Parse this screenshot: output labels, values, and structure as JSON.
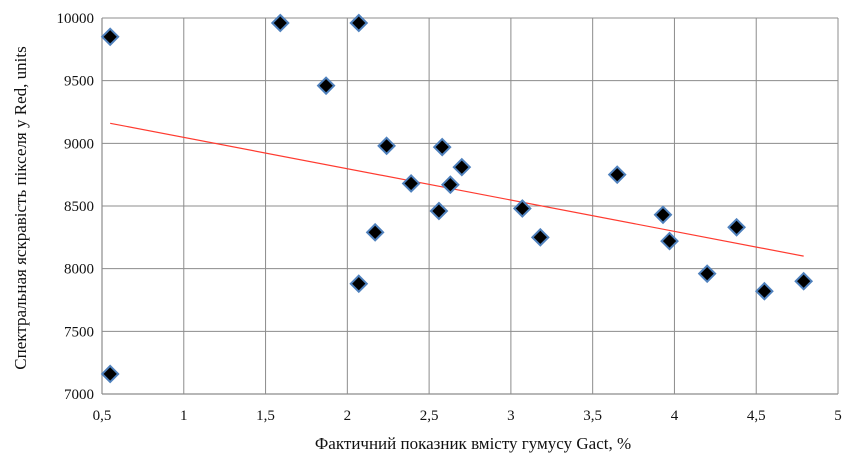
{
  "chart_data": {
    "type": "scatter",
    "title": "",
    "xlabel": "Фактичний показник вмісту гумусу Gact, %",
    "ylabel": "Спектральная яскравість пікселя у Red, units",
    "xlim": [
      0.5,
      5
    ],
    "ylim": [
      7000,
      10000
    ],
    "x_tick_labels": [
      "0,5",
      "1",
      "1,5",
      "2",
      "2,5",
      "3",
      "3,5",
      "4",
      "4,5",
      "5"
    ],
    "y_tick_labels": [
      "7000",
      "7500",
      "8000",
      "8500",
      "9000",
      "9500",
      "10000"
    ],
    "x_ticks": [
      0.5,
      1,
      1.5,
      2,
      2.5,
      3,
      3.5,
      4,
      4.5,
      5
    ],
    "y_ticks": [
      7000,
      7500,
      8000,
      8500,
      9000,
      9500,
      10000
    ],
    "grid": true,
    "legend": "none",
    "series": [
      {
        "points": [
          {
            "x": 0.55,
            "y": 9850
          },
          {
            "x": 0.55,
            "y": 7160
          },
          {
            "x": 1.59,
            "y": 9960
          },
          {
            "x": 1.87,
            "y": 9460
          },
          {
            "x": 2.07,
            "y": 9960
          },
          {
            "x": 2.07,
            "y": 7880
          },
          {
            "x": 2.17,
            "y": 8290
          },
          {
            "x": 2.24,
            "y": 8980
          },
          {
            "x": 2.39,
            "y": 8680
          },
          {
            "x": 2.56,
            "y": 8460
          },
          {
            "x": 2.58,
            "y": 8970
          },
          {
            "x": 2.63,
            "y": 8670
          },
          {
            "x": 2.7,
            "y": 8810
          },
          {
            "x": 3.07,
            "y": 8480
          },
          {
            "x": 3.18,
            "y": 8250
          },
          {
            "x": 3.65,
            "y": 8750
          },
          {
            "x": 3.93,
            "y": 8430
          },
          {
            "x": 3.97,
            "y": 8220
          },
          {
            "x": 4.2,
            "y": 7960
          },
          {
            "x": 4.38,
            "y": 8330
          },
          {
            "x": 4.55,
            "y": 7820
          },
          {
            "x": 4.79,
            "y": 7900
          }
        ]
      }
    ],
    "trendline": {
      "x_start": 0.55,
      "y_start": 9160,
      "x_end": 4.79,
      "y_end": 8100
    },
    "colors": {
      "marker_fill": "#000000",
      "marker_stroke": "#4f81bd",
      "trendline": "#ff3b30",
      "grid": "#8c8c8c",
      "axis_text": "#111111"
    }
  }
}
